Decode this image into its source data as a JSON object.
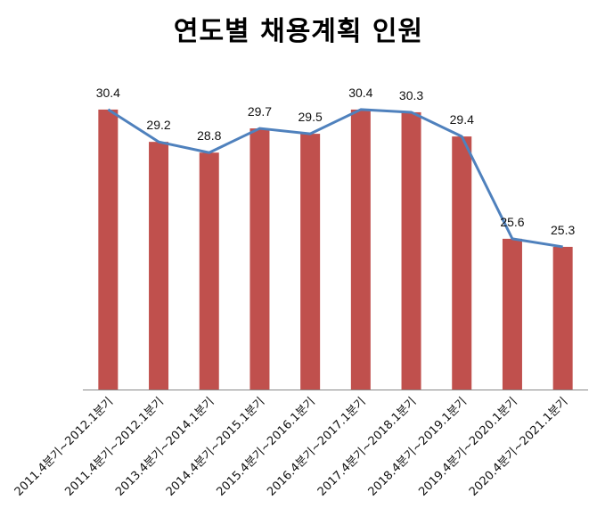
{
  "chart_data": {
    "type": "bar",
    "title": "연도별 채용계획 인원",
    "xlabel": "",
    "ylabel": "",
    "ylim": [
      20,
      31
    ],
    "grid": false,
    "legend": null,
    "categories": [
      "2011.4분기~2012.1분기",
      "2011.4분기~2012.1분기",
      "2013.4분기~2014.1분기",
      "2014.4분기~2015.1분기",
      "2015.4분기~2016.1분기",
      "2016.4분기~2017.1분기",
      "2017.4분기~2018.1분기",
      "2018.4분기~2019.1분기",
      "2019.4분기~2020.1분기",
      "2020.4분기~2021.1분기"
    ],
    "series": [
      {
        "name": "bars",
        "type": "bar",
        "color": "#c0504d",
        "values": [
          30.4,
          29.2,
          28.8,
          29.7,
          29.5,
          30.4,
          30.3,
          29.4,
          25.6,
          25.3
        ]
      },
      {
        "name": "line",
        "type": "line",
        "color": "#4f81bd",
        "values": [
          30.4,
          29.2,
          28.8,
          29.7,
          29.5,
          30.4,
          30.3,
          29.4,
          25.6,
          25.3
        ]
      }
    ],
    "data_labels": [
      "30.4",
      "29.2",
      "28.8",
      "29.7",
      "29.5",
      "30.4",
      "30.3",
      "29.4",
      "25.6",
      "25.3"
    ]
  }
}
